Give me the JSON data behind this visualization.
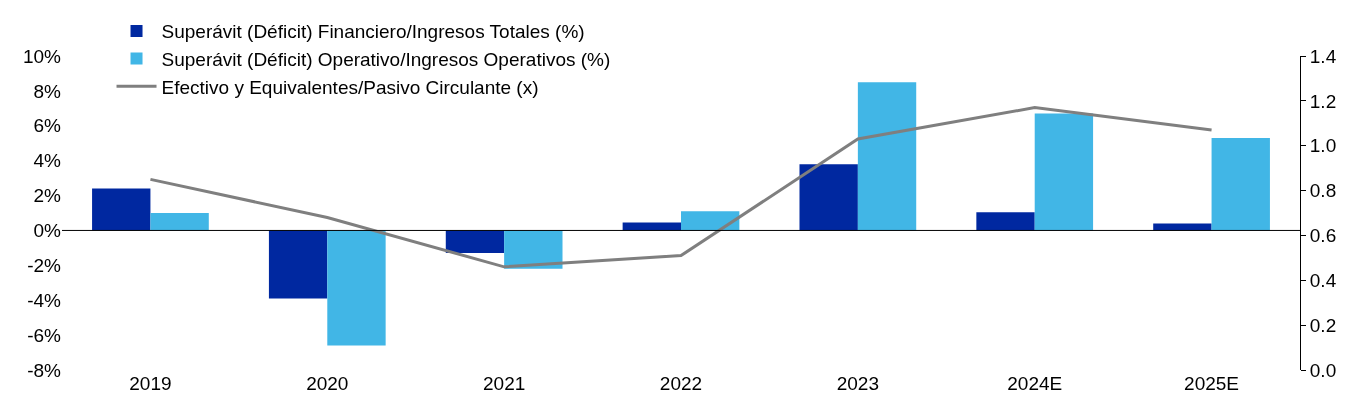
{
  "chart_data": {
    "type": "bar",
    "categories": [
      "2019",
      "2020",
      "2021",
      "2022",
      "2023",
      "2024E",
      "2025E"
    ],
    "series": [
      {
        "name": "Superávit (Déficit) Financiero/Ingresos Totales (%)",
        "color": "#0028a0",
        "values": [
          2.4,
          -3.9,
          -1.3,
          0.45,
          3.8,
          1.05,
          0.4
        ]
      },
      {
        "name": "Superávit (Déficit) Operativo/Ingresos Operativos (%)",
        "color": "#41b6e6",
        "values": [
          1.0,
          -6.6,
          -2.2,
          1.1,
          8.5,
          6.7,
          5.3
        ]
      },
      {
        "name": "Efectivo y Equivalentes/Pasivo Circulante (x)",
        "color": "#7f7f7f",
        "type": "line",
        "axis": "y2",
        "values": [
          0.85,
          0.68,
          0.46,
          0.51,
          1.03,
          1.17,
          1.07
        ]
      }
    ],
    "ylim": [
      -8,
      10
    ],
    "yticks": [
      {
        "value": -8,
        "label": "-8%"
      },
      {
        "value": -6,
        "label": "-6%"
      },
      {
        "value": -4,
        "label": "-4%"
      },
      {
        "value": -2,
        "label": "-2%"
      },
      {
        "value": 0,
        "label": "0%"
      },
      {
        "value": 2,
        "label": "2%"
      },
      {
        "value": 4,
        "label": "4%"
      },
      {
        "value": 6,
        "label": "6%"
      },
      {
        "value": 8,
        "label": "8%"
      },
      {
        "value": 10,
        "label": "10%"
      }
    ],
    "y2lim": [
      0,
      1.4
    ],
    "y2ticks": [
      {
        "value": 0,
        "label": "0.0"
      },
      {
        "value": 0.2,
        "label": "0.2"
      },
      {
        "value": 0.4,
        "label": "0.4"
      },
      {
        "value": 0.6,
        "label": "0.6"
      },
      {
        "value": 0.8,
        "label": "0.8"
      },
      {
        "value": 1.0,
        "label": "1.0"
      },
      {
        "value": 1.2,
        "label": "1.2"
      },
      {
        "value": 1.4,
        "label": "1.4"
      }
    ],
    "ref_lines": [
      {
        "axis": "y",
        "value": 0,
        "color": "#000000",
        "line_style": "solid"
      }
    ],
    "grid": false,
    "legend": "top left",
    "marker": "none",
    "line_style": "solid"
  }
}
